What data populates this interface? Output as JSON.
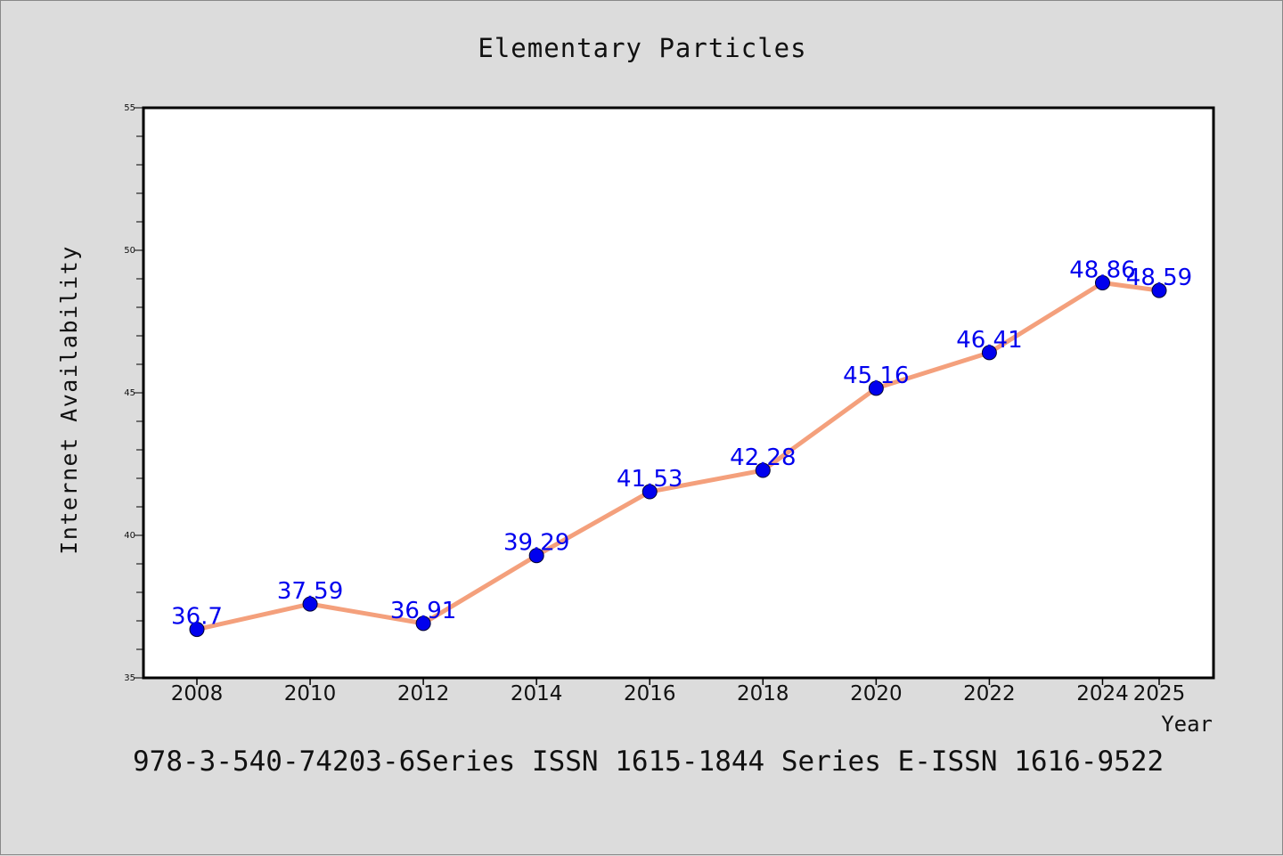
{
  "chart_data": {
    "type": "line",
    "title": "Elementary Particles",
    "xlabel": "Year",
    "ylabel": "Internet Availability",
    "x": [
      "2008",
      "2010",
      "2012",
      "2014",
      "2016",
      "2018",
      "2020",
      "2022",
      "2024",
      "2025"
    ],
    "series": [
      {
        "values": [
          36.7,
          37.59,
          36.91,
          39.29,
          41.53,
          42.28,
          45.16,
          46.41,
          48.86,
          48.59
        ]
      }
    ],
    "data_labels": [
      "36.7",
      "37.59",
      "36.91",
      "39.29",
      "41.53",
      "42.28",
      "45.16",
      "46.41",
      "48.86",
      "48.59"
    ],
    "y_ticks": [
      "35",
      "40",
      "45",
      "50",
      "55"
    ],
    "ylim": [
      35,
      55
    ],
    "grid": false,
    "line_color": "#f4a07c",
    "marker_color": "#0000ee",
    "label_color": "#0000ee"
  },
  "footer_text": "978-3-540-74203-6Series ISSN 1615-1844 Series E-ISSN 1616-9522"
}
